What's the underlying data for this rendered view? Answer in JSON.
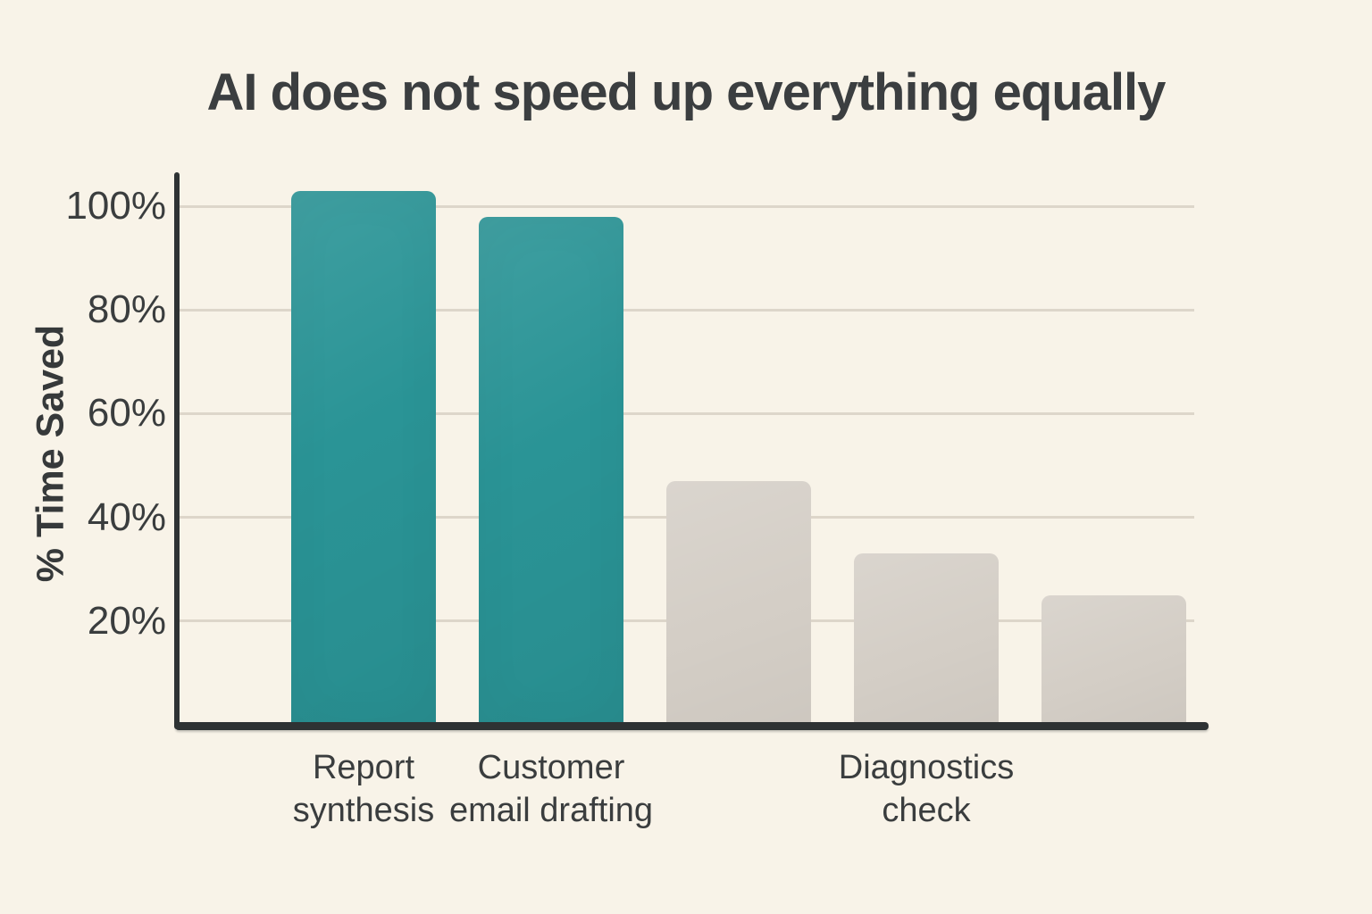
{
  "chart_data": {
    "type": "bar",
    "title": "AI does not speed up everything equally",
    "xlabel": "",
    "ylabel": "% Time Saved",
    "categories": [
      "Report synthesis",
      "Customer email drafting",
      "",
      "Diagnostics check",
      ""
    ],
    "label_lines": [
      [
        "Report",
        "synthesis"
      ],
      [
        "Customer",
        "email drafting"
      ],
      [],
      [
        "Diagnostics",
        "check"
      ],
      []
    ],
    "values": [
      103,
      98,
      47,
      33,
      25
    ],
    "bar_color_roles": [
      "accent",
      "accent",
      "muted",
      "muted",
      "muted"
    ],
    "yticks": [
      20,
      40,
      60,
      80,
      100
    ],
    "ytick_labels": [
      "20%",
      "40%",
      "60%",
      "80%",
      "100%"
    ],
    "ylim": [
      0,
      107
    ],
    "grid": true,
    "legend": false
  },
  "colors": {
    "background": "#f8f3e8",
    "accent": "#2a9496",
    "muted": "#d4cec6",
    "text": "#3a3d3e",
    "axis": "#2e3233",
    "gridline": "#d9d3c6"
  }
}
